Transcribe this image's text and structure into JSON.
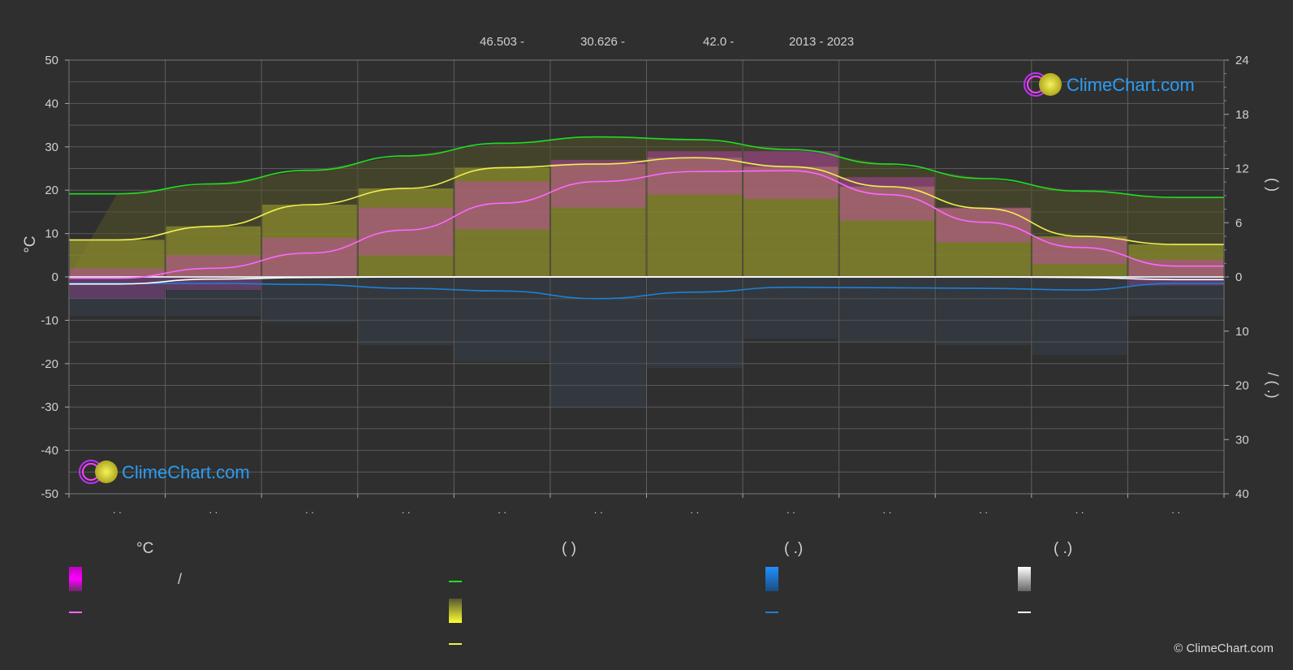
{
  "header": {
    "lat": "46.503 -",
    "lon": "30.626 -",
    "elev": "42.0 -",
    "years": "2013 - 2023"
  },
  "watermark": {
    "text": "ClimeChart.com"
  },
  "copyright": "© ClimeChart.com",
  "colors": {
    "background": "#2f2f2f",
    "grid": "#5a5a5a",
    "daylight": "#22dd22",
    "sunshine": "#f0f050",
    "temp_mean": "#ff66ff",
    "precip": "#1f7fd6",
    "snow": "#ffffff",
    "brand": "#2a9df4"
  },
  "legend": {
    "headers": [
      "°C",
      "(          )",
      "(   .)",
      "(   .)"
    ],
    "slash": "/"
  },
  "chart_data": {
    "type": "line",
    "left_axis": {
      "label": "°C",
      "ylim": [
        -50,
        50
      ],
      "ticks": [
        50,
        40,
        30,
        20,
        10,
        0,
        -10,
        -20,
        -30,
        -40,
        -50
      ]
    },
    "right_axis_top": {
      "ylim": [
        0,
        24
      ],
      "ticks": [
        24,
        18,
        12,
        6,
        0
      ],
      "label": "(    )"
    },
    "right_axis_bottom": {
      "ylim": [
        0,
        40
      ],
      "ticks": [
        0,
        10,
        20,
        30,
        40
      ],
      "label": "/\n(   .)"
    },
    "x_tick_labels": [
      ". .",
      ". .",
      ". .",
      ". .",
      ". .",
      ". .",
      ". .",
      ". .",
      ". .",
      ". .",
      ". .",
      ". ."
    ],
    "months": 12,
    "series": [
      {
        "key": "daylight",
        "axis": "hours",
        "color": "#22dd22",
        "values": [
          9.2,
          10.3,
          11.8,
          13.4,
          14.8,
          15.5,
          15.2,
          14.1,
          12.5,
          10.9,
          9.5,
          8.8
        ]
      },
      {
        "key": "sunshine",
        "axis": "hours",
        "color": "#f0f050",
        "values": [
          4.1,
          5.6,
          8.0,
          9.8,
          12.1,
          12.5,
          13.2,
          12.2,
          10.0,
          7.6,
          4.5,
          3.6
        ]
      },
      {
        "key": "temp_mean",
        "axis": "celsius",
        "color": "#ff66ff",
        "values": [
          -0.3,
          2.0,
          5.5,
          10.8,
          17.0,
          22.0,
          24.3,
          24.5,
          19.0,
          12.6,
          6.8,
          2.5
        ]
      },
      {
        "key": "precip",
        "axis": "mm",
        "color": "#1f7fd6",
        "values": [
          1.2,
          1.2,
          1.4,
          2.1,
          2.6,
          4.0,
          2.8,
          1.9,
          2.0,
          2.1,
          2.4,
          1.2
        ]
      },
      {
        "key": "snow",
        "axis": "mm",
        "color": "#ffffff",
        "values": [
          1.3,
          0.4,
          0.1,
          0,
          0,
          0,
          0,
          0,
          0,
          0,
          0.1,
          0.5
        ]
      }
    ],
    "temp_band_max": [
      2,
      5,
      9,
      16,
      22,
      27,
      29,
      29,
      23,
      16,
      9,
      4
    ],
    "temp_band_min": [
      -5,
      -3,
      0,
      5,
      11,
      16,
      19,
      18,
      13,
      8,
      3,
      -2
    ],
    "grid": true
  }
}
